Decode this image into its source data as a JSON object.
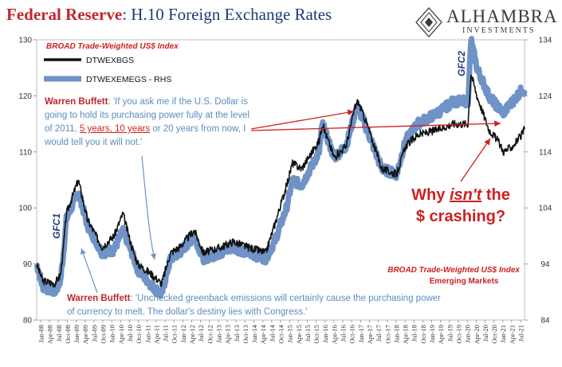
{
  "title": "Federal Reserve",
  "subtitle": ": H.10 Foreign Exchange Rates",
  "logo": {
    "name": "ALHAMBRA",
    "tagline": "INVESTMENTS",
    "icon": "diamond-logo-icon"
  },
  "chart_data": {
    "type": "line",
    "left_axis": {
      "min": 80,
      "max": 130,
      "ticks": [
        80,
        90,
        100,
        110,
        120,
        130
      ]
    },
    "right_axis": {
      "min": 84,
      "max": 134,
      "ticks": [
        84,
        94,
        104,
        114,
        124,
        134
      ]
    },
    "x_ticks": [
      "Jan-08",
      "Apr-08",
      "Jul-08",
      "Oct-08",
      "Jan-09",
      "Apr-09",
      "Jul-09",
      "Oct-09",
      "Jan-10",
      "Apr-10",
      "Jul-10",
      "Oct-10",
      "Jan-11",
      "Apr-11",
      "Jul-11",
      "Oct-11",
      "Jan-12",
      "Apr-12",
      "Jul-12",
      "Oct-12",
      "Jan-13",
      "Apr-13",
      "Jul-13",
      "Oct-13",
      "Jan-14",
      "Apr-14",
      "Jul-14",
      "Oct-14",
      "Jan-15",
      "Apr-15",
      "Jul-15",
      "Oct-15",
      "Jan-16",
      "Apr-16",
      "Jul-16",
      "Oct-16",
      "Jan-17",
      "Apr-17",
      "Jul-17",
      "Oct-17",
      "Jan-18",
      "Apr-18",
      "Jul-18",
      "Oct-18",
      "Jan-19",
      "Apr-19",
      "Jul-19",
      "Oct-19",
      "Jan-20",
      "Apr-20",
      "Jul-20",
      "Oct-20",
      "Jan-21",
      "Apr-21",
      "Jul-21"
    ],
    "series": [
      {
        "name": "DTWEXBGS",
        "color": "#111111",
        "axis": "left",
        "points": [
          [
            "2008-01",
            90
          ],
          [
            "2008-03",
            87
          ],
          [
            "2008-07",
            86.5
          ],
          [
            "2008-09",
            88
          ],
          [
            "2008-10",
            93
          ],
          [
            "2008-11",
            99
          ],
          [
            "2009-03",
            105
          ],
          [
            "2009-06",
            98
          ],
          [
            "2009-11",
            93
          ],
          [
            "2010-03",
            95
          ],
          [
            "2010-06",
            99
          ],
          [
            "2010-09",
            93
          ],
          [
            "2010-11",
            90
          ],
          [
            "2011-04",
            88
          ],
          [
            "2011-07",
            86.5
          ],
          [
            "2011-10",
            92
          ],
          [
            "2012-01",
            93
          ],
          [
            "2012-06",
            96
          ],
          [
            "2012-09",
            92
          ],
          [
            "2013-03",
            93
          ],
          [
            "2013-07",
            94
          ],
          [
            "2013-12",
            93
          ],
          [
            "2014-06",
            92
          ],
          [
            "2014-09",
            97
          ],
          [
            "2015-01",
            104
          ],
          [
            "2015-03",
            108
          ],
          [
            "2015-06",
            107
          ],
          [
            "2015-12",
            112
          ],
          [
            "2016-01",
            115
          ],
          [
            "2016-05",
            109
          ],
          [
            "2016-09",
            111
          ],
          [
            "2016-12",
            118
          ],
          [
            "2017-01",
            119
          ],
          [
            "2017-04",
            115
          ],
          [
            "2017-09",
            107
          ],
          [
            "2018-02",
            106
          ],
          [
            "2018-05",
            111
          ],
          [
            "2018-09",
            113
          ],
          [
            "2019-04",
            114
          ],
          [
            "2019-09",
            115
          ],
          [
            "2020-02",
            115
          ],
          [
            "2020-03",
            124
          ],
          [
            "2020-05",
            120
          ],
          [
            "2020-09",
            114
          ],
          [
            "2020-12",
            112
          ],
          [
            "2021-02",
            110
          ],
          [
            "2021-05",
            111
          ],
          [
            "2021-08",
            113
          ],
          [
            "2021-09",
            114
          ]
        ]
      },
      {
        "name": "DTWEXEMEGS - RHS",
        "color": "#6f93c6",
        "axis": "right",
        "points": [
          [
            "2008-01",
            94
          ],
          [
            "2008-03",
            90
          ],
          [
            "2008-07",
            89
          ],
          [
            "2008-09",
            91
          ],
          [
            "2008-10",
            96
          ],
          [
            "2008-11",
            102
          ],
          [
            "2009-03",
            107
          ],
          [
            "2009-06",
            101
          ],
          [
            "2009-11",
            96
          ],
          [
            "2010-03",
            96.5
          ],
          [
            "2010-06",
            100
          ],
          [
            "2010-09",
            96
          ],
          [
            "2010-11",
            93
          ],
          [
            "2011-04",
            90
          ],
          [
            "2011-07",
            88.5
          ],
          [
            "2011-10",
            95
          ],
          [
            "2012-01",
            96
          ],
          [
            "2012-06",
            99
          ],
          [
            "2012-09",
            95
          ],
          [
            "2013-03",
            96
          ],
          [
            "2013-07",
            97
          ],
          [
            "2013-12",
            96
          ],
          [
            "2014-06",
            95
          ],
          [
            "2014-09",
            98
          ],
          [
            "2015-01",
            104
          ],
          [
            "2015-03",
            109
          ],
          [
            "2015-06",
            108
          ],
          [
            "2015-12",
            114
          ],
          [
            "2016-01",
            119
          ],
          [
            "2016-05",
            113
          ],
          [
            "2016-09",
            115
          ],
          [
            "2016-12",
            121
          ],
          [
            "2017-01",
            122
          ],
          [
            "2017-04",
            118
          ],
          [
            "2017-09",
            111
          ],
          [
            "2018-02",
            110
          ],
          [
            "2018-05",
            116
          ],
          [
            "2018-09",
            119
          ],
          [
            "2019-04",
            121
          ],
          [
            "2019-09",
            123
          ],
          [
            "2020-02",
            123
          ],
          [
            "2020-03",
            134
          ],
          [
            "2020-05",
            129
          ],
          [
            "2020-09",
            124
          ],
          [
            "2020-12",
            122
          ],
          [
            "2021-02",
            121
          ],
          [
            "2021-05",
            123
          ],
          [
            "2021-08",
            125
          ],
          [
            "2021-09",
            125
          ]
        ]
      }
    ],
    "left_axis_label": "BROAD Trade-Weighted US$ Index",
    "right_axis_label": "BROAD Trade-Weighted US$ Index",
    "right_axis_sublabel": "Emerging Markets",
    "annotations": {
      "gfc1": "GFC1",
      "gfc2": "GFC2",
      "quote1_author": "Warren Buffett",
      "quote1_pre": ": 'If you ask me if the U.S. Dollar is going to hold its purchasing power fully at the level of 2011,",
      "quote1_highlight": "5 years, 10 years",
      "quote1_post": "or 20 years from now, I would tell you it will not.'",
      "quote2_author": "Warren Buffett",
      "quote2_text": ": 'Unchecked greenback emissions will certainly cause the purchasing power of currency to melt. The dollar's destiny lies with Congress.'",
      "question_line1_pre": "Why ",
      "question_line1_em": "isn't",
      "question_line1_post": " the",
      "question_line2": "$ crashing?"
    }
  }
}
